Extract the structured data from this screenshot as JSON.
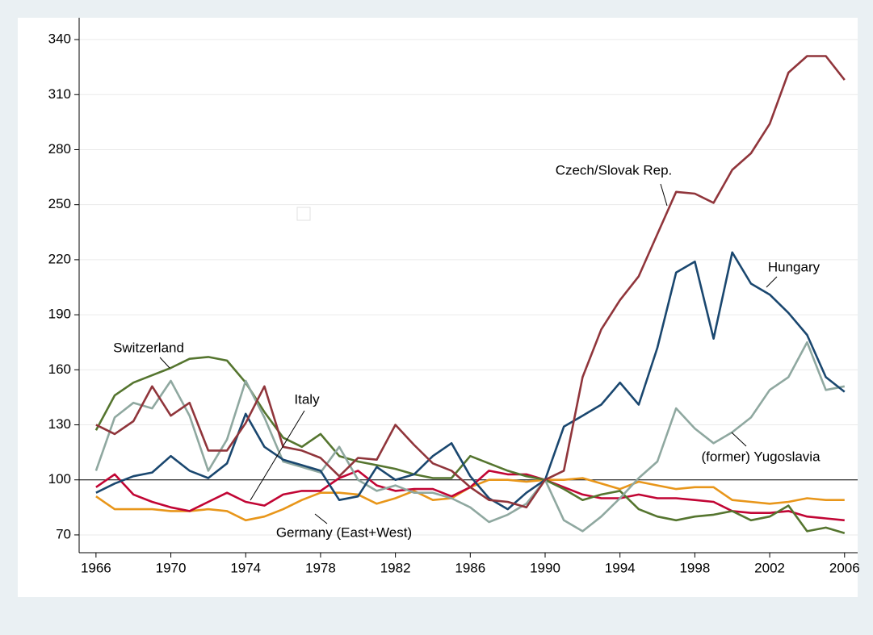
{
  "chart_data": {
    "type": "line",
    "x": [
      1966,
      1967,
      1968,
      1969,
      1970,
      1971,
      1972,
      1973,
      1974,
      1975,
      1976,
      1977,
      1978,
      1979,
      1980,
      1981,
      1982,
      1983,
      1984,
      1985,
      1986,
      1987,
      1988,
      1989,
      1990,
      1991,
      1992,
      1993,
      1994,
      1995,
      1996,
      1997,
      1998,
      1999,
      2000,
      2001,
      2002,
      2003,
      2004,
      2005,
      2006
    ],
    "series": [
      {
        "name": "Germany (East+West)",
        "color": "#e8961a",
        "values": [
          91,
          84,
          84,
          84,
          83,
          83,
          84,
          83,
          78,
          80,
          84,
          89,
          93,
          93,
          92,
          87,
          90,
          94,
          89,
          90,
          96,
          100,
          100,
          99,
          100,
          100,
          101,
          98,
          95,
          99,
          97,
          95,
          96,
          96,
          89,
          88,
          87,
          88,
          90,
          89,
          89
        ]
      },
      {
        "name": "Italy",
        "color": "#c10534",
        "values": [
          96,
          103,
          92,
          88,
          85,
          83,
          88,
          93,
          88,
          86,
          92,
          94,
          94,
          101,
          105,
          97,
          94,
          95,
          95,
          91,
          96,
          105,
          103,
          103,
          100,
          96,
          92,
          90,
          90,
          92,
          90,
          90,
          89,
          88,
          83,
          82,
          82,
          83,
          80,
          79,
          78
        ]
      },
      {
        "name": "Switzerland",
        "color": "#55752f",
        "values": [
          127,
          146,
          153,
          157,
          161,
          166,
          167,
          165,
          153,
          137,
          123,
          118,
          125,
          113,
          110,
          108,
          106,
          103,
          101,
          101,
          113,
          109,
          105,
          102,
          100,
          95,
          89,
          92,
          94,
          84,
          80,
          78,
          80,
          81,
          83,
          78,
          80,
          86,
          72,
          74,
          71
        ]
      },
      {
        "name": "(former) Yugoslavia",
        "color": "#8fa8a0",
        "values": [
          105,
          134,
          142,
          139,
          154,
          135,
          105,
          122,
          154,
          134,
          110,
          107,
          104,
          118,
          100,
          94,
          97,
          93,
          93,
          90,
          85,
          77,
          81,
          87,
          100,
          78,
          72,
          80,
          90,
          101,
          110,
          139,
          128,
          120,
          126,
          134,
          149,
          156,
          175,
          149,
          151
        ]
      },
      {
        "name": "Hungary",
        "color": "#1a476f",
        "values": [
          93,
          98,
          102,
          104,
          113,
          105,
          101,
          109,
          136,
          118,
          111,
          108,
          105,
          89,
          91,
          107,
          100,
          103,
          113,
          120,
          102,
          90,
          84,
          93,
          100,
          129,
          135,
          141,
          153,
          141,
          172,
          213,
          219,
          177,
          224,
          207,
          201,
          191,
          179,
          156,
          148
        ]
      },
      {
        "name": "Czech/Slovak Rep.",
        "color": "#90353b",
        "values": [
          130,
          125,
          132,
          151,
          135,
          142,
          116,
          116,
          131,
          151,
          118,
          116,
          112,
          102,
          112,
          111,
          130,
          119,
          109,
          105,
          96,
          89,
          88,
          85,
          100,
          105,
          156,
          182,
          198,
          211,
          234,
          257,
          256,
          251,
          269,
          278,
          294,
          322,
          331,
          331,
          318
        ]
      }
    ],
    "xlim": [
      1965.1,
      2006.7
    ],
    "xticks": [
      1966,
      1970,
      1974,
      1978,
      1982,
      1986,
      1990,
      1994,
      1998,
      2002,
      2006
    ],
    "ylim": [
      60.3,
      351.9
    ],
    "yticks": [
      70,
      100,
      130,
      160,
      190,
      220,
      250,
      280,
      310,
      340
    ],
    "yline": 100,
    "grid": true
  }
}
